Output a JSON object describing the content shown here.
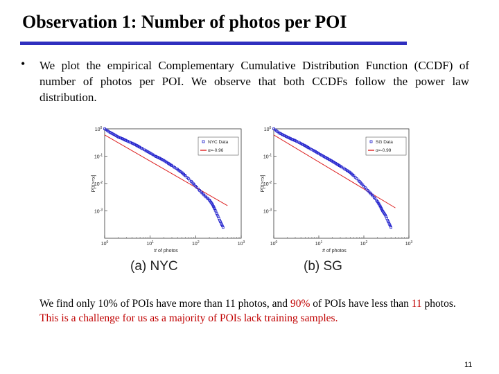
{
  "slide": {
    "title": "Observation 1: Number of photos per POI",
    "bullet": "We plot the empirical Complementary Cumulative Distribution Function (CCDF) of number of photos per POI. We observe that both CCDFs follow the power law distribution.",
    "bullet_marker": "•",
    "finding": {
      "part1": "We find only 10% of POIs have more than 11 photos, and ",
      "part2_red": "90%",
      "part3": " of POIs have less than ",
      "part4_red": "11",
      "part5": " photos.",
      "line2_red": "This is a challenge for us as a majority of POIs lack training samples."
    },
    "page_number": "11"
  },
  "colors": {
    "accent_rule": "#2f2fbf",
    "data": "#1e1ecc",
    "fit": "#dd2020",
    "highlight": "#c00000"
  },
  "chart_data": [
    {
      "type": "scatter",
      "title": "",
      "caption": "(a) NYC",
      "xlabel": "# of photos",
      "ylabel": "P[X>=x]",
      "xscale": "log",
      "yscale": "log",
      "xlim": [
        1,
        1000
      ],
      "ylim": [
        0.0001,
        1
      ],
      "x_ticks": [
        "10^0",
        "10^1",
        "10^2",
        "10^3"
      ],
      "y_ticks": [
        "10^0",
        "10^-1",
        "10^-2",
        "10^-3"
      ],
      "legend": [
        "NYC Data",
        "α=-0.96"
      ],
      "series": [
        {
          "name": "NYC Data",
          "x": [
            1,
            1.3,
            1.6,
            2,
            2.5,
            3,
            4,
            5,
            6,
            8,
            10,
            13,
            16,
            20,
            25,
            30,
            40,
            50,
            60,
            80,
            100,
            130,
            160,
            200,
            230,
            260,
            300,
            350,
            400
          ],
          "y": [
            1,
            0.75,
            0.62,
            0.5,
            0.43,
            0.37,
            0.3,
            0.25,
            0.21,
            0.16,
            0.13,
            0.1,
            0.085,
            0.07,
            0.055,
            0.045,
            0.033,
            0.025,
            0.019,
            0.012,
            0.008,
            0.005,
            0.0035,
            0.0025,
            0.0018,
            0.0012,
            0.0007,
            0.0004,
            0.00025
          ]
        },
        {
          "name": "α=-0.96",
          "x": [
            1,
            500
          ],
          "y": [
            0.6,
            0.00155
          ],
          "line": true
        }
      ]
    },
    {
      "type": "scatter",
      "title": "",
      "caption": "(b) SG",
      "xlabel": "# of photos",
      "ylabel": "P[X>=x]",
      "xscale": "log",
      "yscale": "log",
      "xlim": [
        1,
        1000
      ],
      "ylim": [
        0.0001,
        1
      ],
      "x_ticks": [
        "10^0",
        "10^1",
        "10^2",
        "10^3"
      ],
      "y_ticks": [
        "10^0",
        "10^-1",
        "10^-2",
        "10^-3"
      ],
      "legend": [
        "SG Data",
        "α=-0.99"
      ],
      "series": [
        {
          "name": "SG Data",
          "x": [
            1,
            1.3,
            1.6,
            2,
            2.5,
            3,
            4,
            5,
            6,
            8,
            10,
            13,
            16,
            20,
            25,
            30,
            40,
            50,
            60,
            80,
            100,
            130,
            160,
            200,
            230,
            260,
            300,
            350,
            400
          ],
          "y": [
            1,
            0.72,
            0.6,
            0.5,
            0.42,
            0.37,
            0.29,
            0.24,
            0.2,
            0.155,
            0.125,
            0.097,
            0.08,
            0.065,
            0.052,
            0.043,
            0.032,
            0.025,
            0.019,
            0.012,
            0.008,
            0.005,
            0.0035,
            0.0022,
            0.0015,
            0.001,
            0.0007,
            0.0004,
            0.00025
          ]
        },
        {
          "name": "α=-0.99",
          "x": [
            1,
            500
          ],
          "y": [
            0.6,
            0.00129
          ],
          "line": true
        }
      ]
    }
  ]
}
